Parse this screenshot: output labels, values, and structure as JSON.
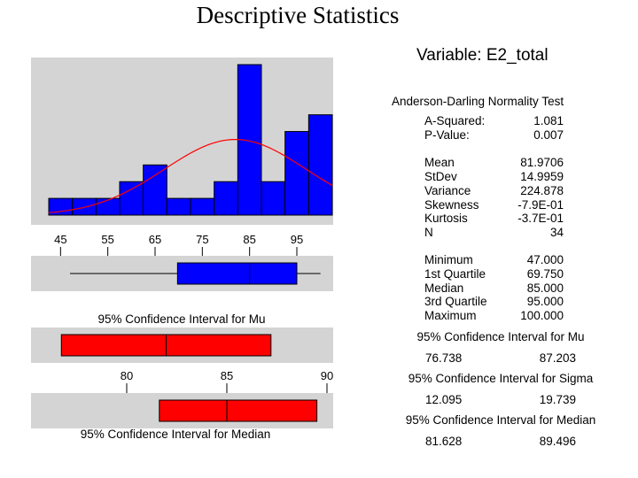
{
  "title": "Descriptive Statistics",
  "variable_title": "Variable: E2_total",
  "normality": {
    "heading": "Anderson-Darling Normality Test",
    "rows": [
      {
        "label": "A-Squared:",
        "value": "1.081"
      },
      {
        "label": "P-Value:",
        "value": "0.007"
      }
    ]
  },
  "moments": [
    {
      "label": "Mean",
      "value": "81.9706"
    },
    {
      "label": "StDev",
      "value": "14.9959"
    },
    {
      "label": "Variance",
      "value": "224.878"
    },
    {
      "label": "Skewness",
      "value": "-7.9E-01"
    },
    {
      "label": "Kurtosis",
      "value": "-3.7E-01"
    },
    {
      "label": "N",
      "value": "34"
    }
  ],
  "quartiles": [
    {
      "label": "Minimum",
      "value": "47.000"
    },
    {
      "label": "1st Quartile",
      "value": "69.750"
    },
    {
      "label": "Median",
      "value": "85.000"
    },
    {
      "label": "3rd Quartile",
      "value": "95.000"
    },
    {
      "label": "Maximum",
      "value": "100.000"
    }
  ],
  "ci_mu": {
    "heading": "95% Confidence Interval for Mu",
    "low": "76.738",
    "high": "87.203"
  },
  "ci_sigma": {
    "heading": "95% Confidence Interval for Sigma",
    "low": "12.095",
    "high": "19.739"
  },
  "ci_median": {
    "heading": "95% Confidence Interval for Median",
    "low": "81.628",
    "high": "89.496"
  },
  "chart_data": [
    {
      "type": "bar",
      "bin_edges": [
        42.5,
        47.5,
        52.5,
        57.5,
        62.5,
        67.5,
        72.5,
        77.5,
        82.5,
        87.5,
        92.5,
        97.5,
        102.5
      ],
      "values": [
        1,
        1,
        1,
        2,
        3,
        1,
        1,
        2,
        9,
        2,
        5,
        6
      ],
      "normal_curve": {
        "mean": 81.9706,
        "stdev": 14.9959,
        "n": 34,
        "bin_width": 5
      },
      "x_ticks": [
        45,
        55,
        65,
        75,
        85,
        95
      ],
      "colors": {
        "bar": "#0000ff",
        "curve": "#ff0000"
      }
    },
    {
      "type": "boxplot",
      "min": 47,
      "q1": 69.75,
      "median": 85,
      "q3": 95,
      "max": 100,
      "colors": {
        "box": "#0000ff"
      }
    },
    {
      "type": "interval",
      "label": "95% Confidence Interval for Mu",
      "low": 76.738,
      "center": 81.9706,
      "high": 87.203,
      "x_ticks": [
        80,
        85,
        90
      ],
      "colors": {
        "bar": "#ff0000"
      }
    },
    {
      "type": "interval",
      "label": "95% Confidence Interval for Median",
      "low": 81.628,
      "center": 85,
      "high": 89.496,
      "colors": {
        "bar": "#ff0000"
      }
    }
  ]
}
